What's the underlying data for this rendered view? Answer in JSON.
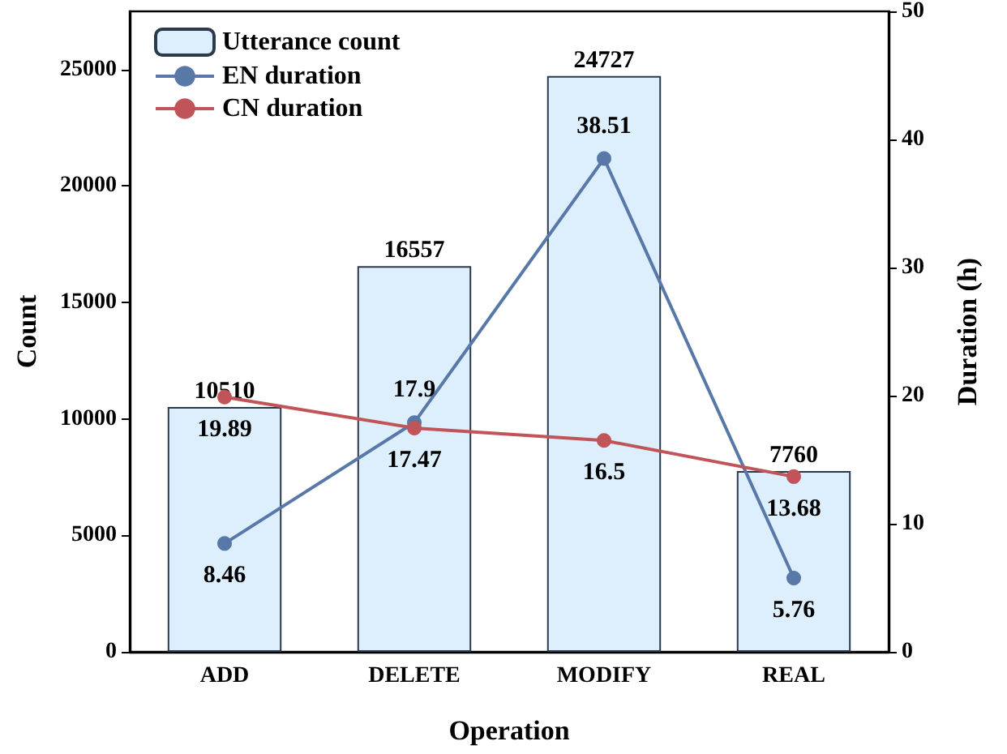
{
  "chart_data": {
    "type": "bar",
    "xlabel": "Operation",
    "ylabel": "Count",
    "y2label": "Duration (h)",
    "categories": [
      "ADD",
      "DELETE",
      "MODIFY",
      "REAL"
    ],
    "series": [
      {
        "name": "Utterance count",
        "color": "#ddeefc",
        "values": [
          10510,
          16557,
          24727,
          7760
        ]
      },
      {
        "name": "EN duration",
        "type": "line",
        "axis": "y2",
        "color": "#5878a8",
        "values": [
          8.46,
          17.9,
          38.51,
          5.76
        ]
      },
      {
        "name": "CN duration",
        "type": "line",
        "axis": "y2",
        "color": "#c05458",
        "values": [
          19.89,
          17.47,
          16.5,
          13.68
        ]
      }
    ],
    "ylim": [
      0,
      27500
    ],
    "yticks": [
      0,
      5000,
      10000,
      15000,
      20000,
      25000
    ],
    "y2lim": [
      0,
      50
    ],
    "y2ticks": [
      0,
      10,
      20,
      30,
      40,
      50
    ],
    "data_labels": true,
    "legend": "top left",
    "grid": false,
    "marker": "circle",
    "line_style": "solid"
  }
}
